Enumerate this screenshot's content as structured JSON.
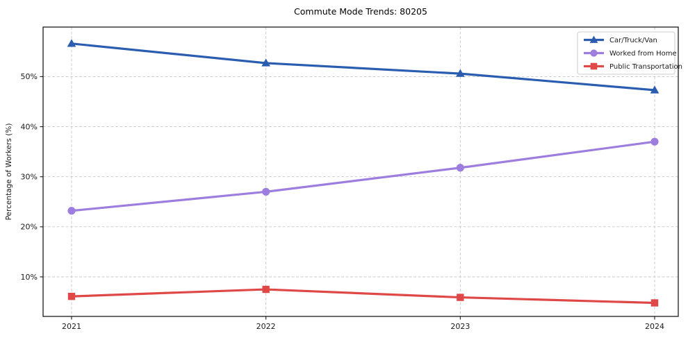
{
  "chart_data": {
    "type": "line",
    "title": "Commute Mode Trends: 80205",
    "xlabel": "",
    "ylabel": "Percentage of Workers (%)",
    "x": [
      2021,
      2022,
      2023,
      2024
    ],
    "x_tick_labels": [
      "2021",
      "2022",
      "2023",
      "2024"
    ],
    "y_ticks": [
      10,
      20,
      30,
      40,
      50
    ],
    "y_tick_labels": [
      "10%",
      "20%",
      "30%",
      "40%",
      "50%"
    ],
    "ylim": [
      2.1,
      59.9
    ],
    "grid": true,
    "grid_line_style": "dashed",
    "legend_position": "upper right",
    "series": [
      {
        "name": "Car/Truck/Van",
        "marker": "triangle",
        "color": "#2a5db0",
        "values": [
          56.6,
          52.7,
          50.6,
          47.3
        ]
      },
      {
        "name": "Worked from Home",
        "marker": "circle",
        "color": "#9d7ede",
        "values": [
          23.2,
          27.0,
          31.8,
          37.0
        ]
      },
      {
        "name": "Public Transportation",
        "marker": "square",
        "color": "#e04848",
        "values": [
          6.1,
          7.5,
          5.9,
          4.8
        ]
      }
    ],
    "colors": {
      "grid": "#c9c9c9",
      "axis_border": "#1a1a1a",
      "legend_border": "#cccccc",
      "background": "#ffffff"
    }
  }
}
